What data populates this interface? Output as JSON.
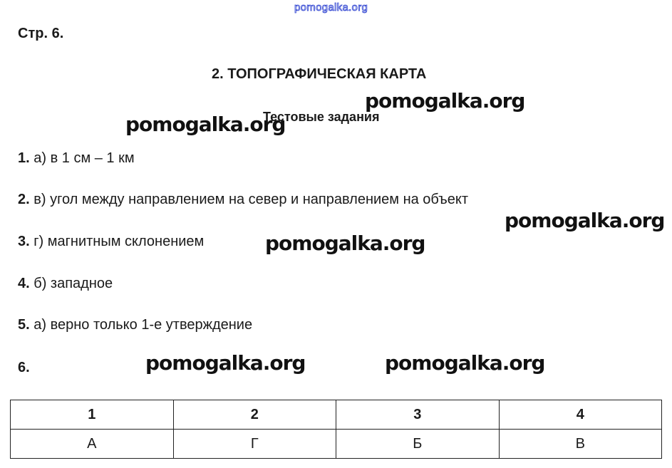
{
  "watermark_top": "pomogalka.org",
  "watermark": "pomogalka.org",
  "page_label": "Стр. 6.",
  "title": "2. ТОПОГРАФИЧЕСКАЯ КАРТА",
  "subtitle": "Тестовые задания",
  "answers": [
    {
      "num": "1.",
      "text": " а) в 1 см – 1 км"
    },
    {
      "num": "2.",
      "text": " в) угол между направлением на север и направлением на объект"
    },
    {
      "num": "3.",
      "text": " г) магнитным склонением"
    },
    {
      "num": "4.",
      "text": " б) западное"
    },
    {
      "num": "5.",
      "text": " а) верно только 1-е утверждение"
    },
    {
      "num": "6.",
      "text": ""
    }
  ],
  "table": {
    "headers": [
      "1",
      "2",
      "3",
      "4"
    ],
    "values": [
      "А",
      "Г",
      "Б",
      "В"
    ]
  }
}
